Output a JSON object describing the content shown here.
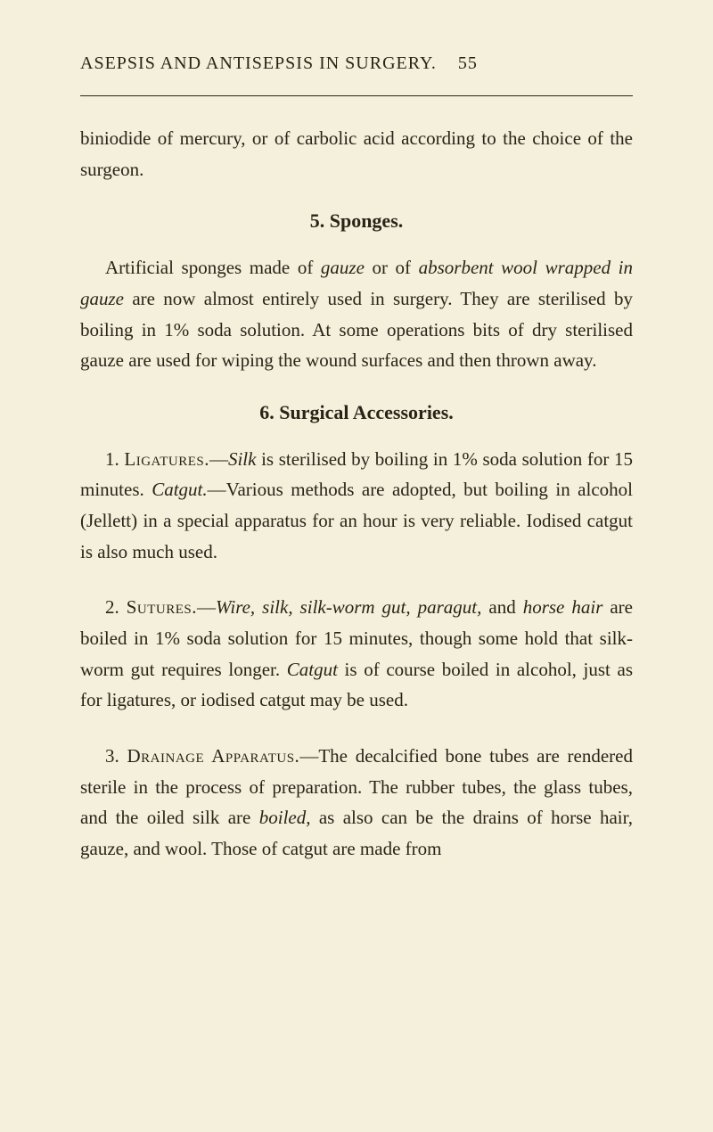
{
  "header": {
    "title": "ASEPSIS AND ANTISEPSIS IN SURGERY.",
    "page_number": "55"
  },
  "paragraphs": {
    "intro": {
      "text": "biniodide of mercury, or of carbolic acid according to the choice of the surgeon."
    },
    "section5": {
      "title": "5. Sponges.",
      "p1_pre": "Artificial sponges made of ",
      "p1_i1": "gauze",
      "p1_mid1": " or of ",
      "p1_i2": "absorbent wool wrapped in gauze",
      "p1_post": " are now almost entirely used in surgery. They are sterilised by boiling in 1% soda solution. At some operations bits of dry sterilised gauze are used for wiping the wound surfaces and then thrown away."
    },
    "section6": {
      "title": "6. Surgical Accessories.",
      "p1_num": "1. ",
      "p1_sc": "Ligatures.",
      "p1_dash": "—",
      "p1_i1": "Silk",
      "p1_mid1": " is sterilised by boiling in 1% soda solution for 15 minutes. ",
      "p1_i2": "Catgut.",
      "p1_post": "—Various methods are adopted, but boiling in alcohol (Jellett) in a special apparatus for an hour is very reliable. Iodised catgut is also much used.",
      "p2_num": "2. ",
      "p2_sc": "Sutures.",
      "p2_dash": "—",
      "p2_i1": "Wire, silk, silk-worm gut, paragut,",
      "p2_mid1": " and ",
      "p2_i2": "horse hair",
      "p2_mid2": " are boiled in 1% soda solution for 15 minutes, though some hold that silk-worm gut requires longer. ",
      "p2_i3": "Catgut",
      "p2_post": " is of course boiled in alcohol, just as for ligatures, or iodised catgut may be used.",
      "p3_num": "3. ",
      "p3_sc": "Drainage Apparatus.",
      "p3_dash": "—The decalcified bone tubes are rendered sterile in the process of preparation. The rubber tubes, the glass tubes, and the oiled silk are ",
      "p3_i1": "boiled,",
      "p3_post": " as also can be the drains of horse hair, gauze, and wool. Those of catgut are made from"
    }
  }
}
